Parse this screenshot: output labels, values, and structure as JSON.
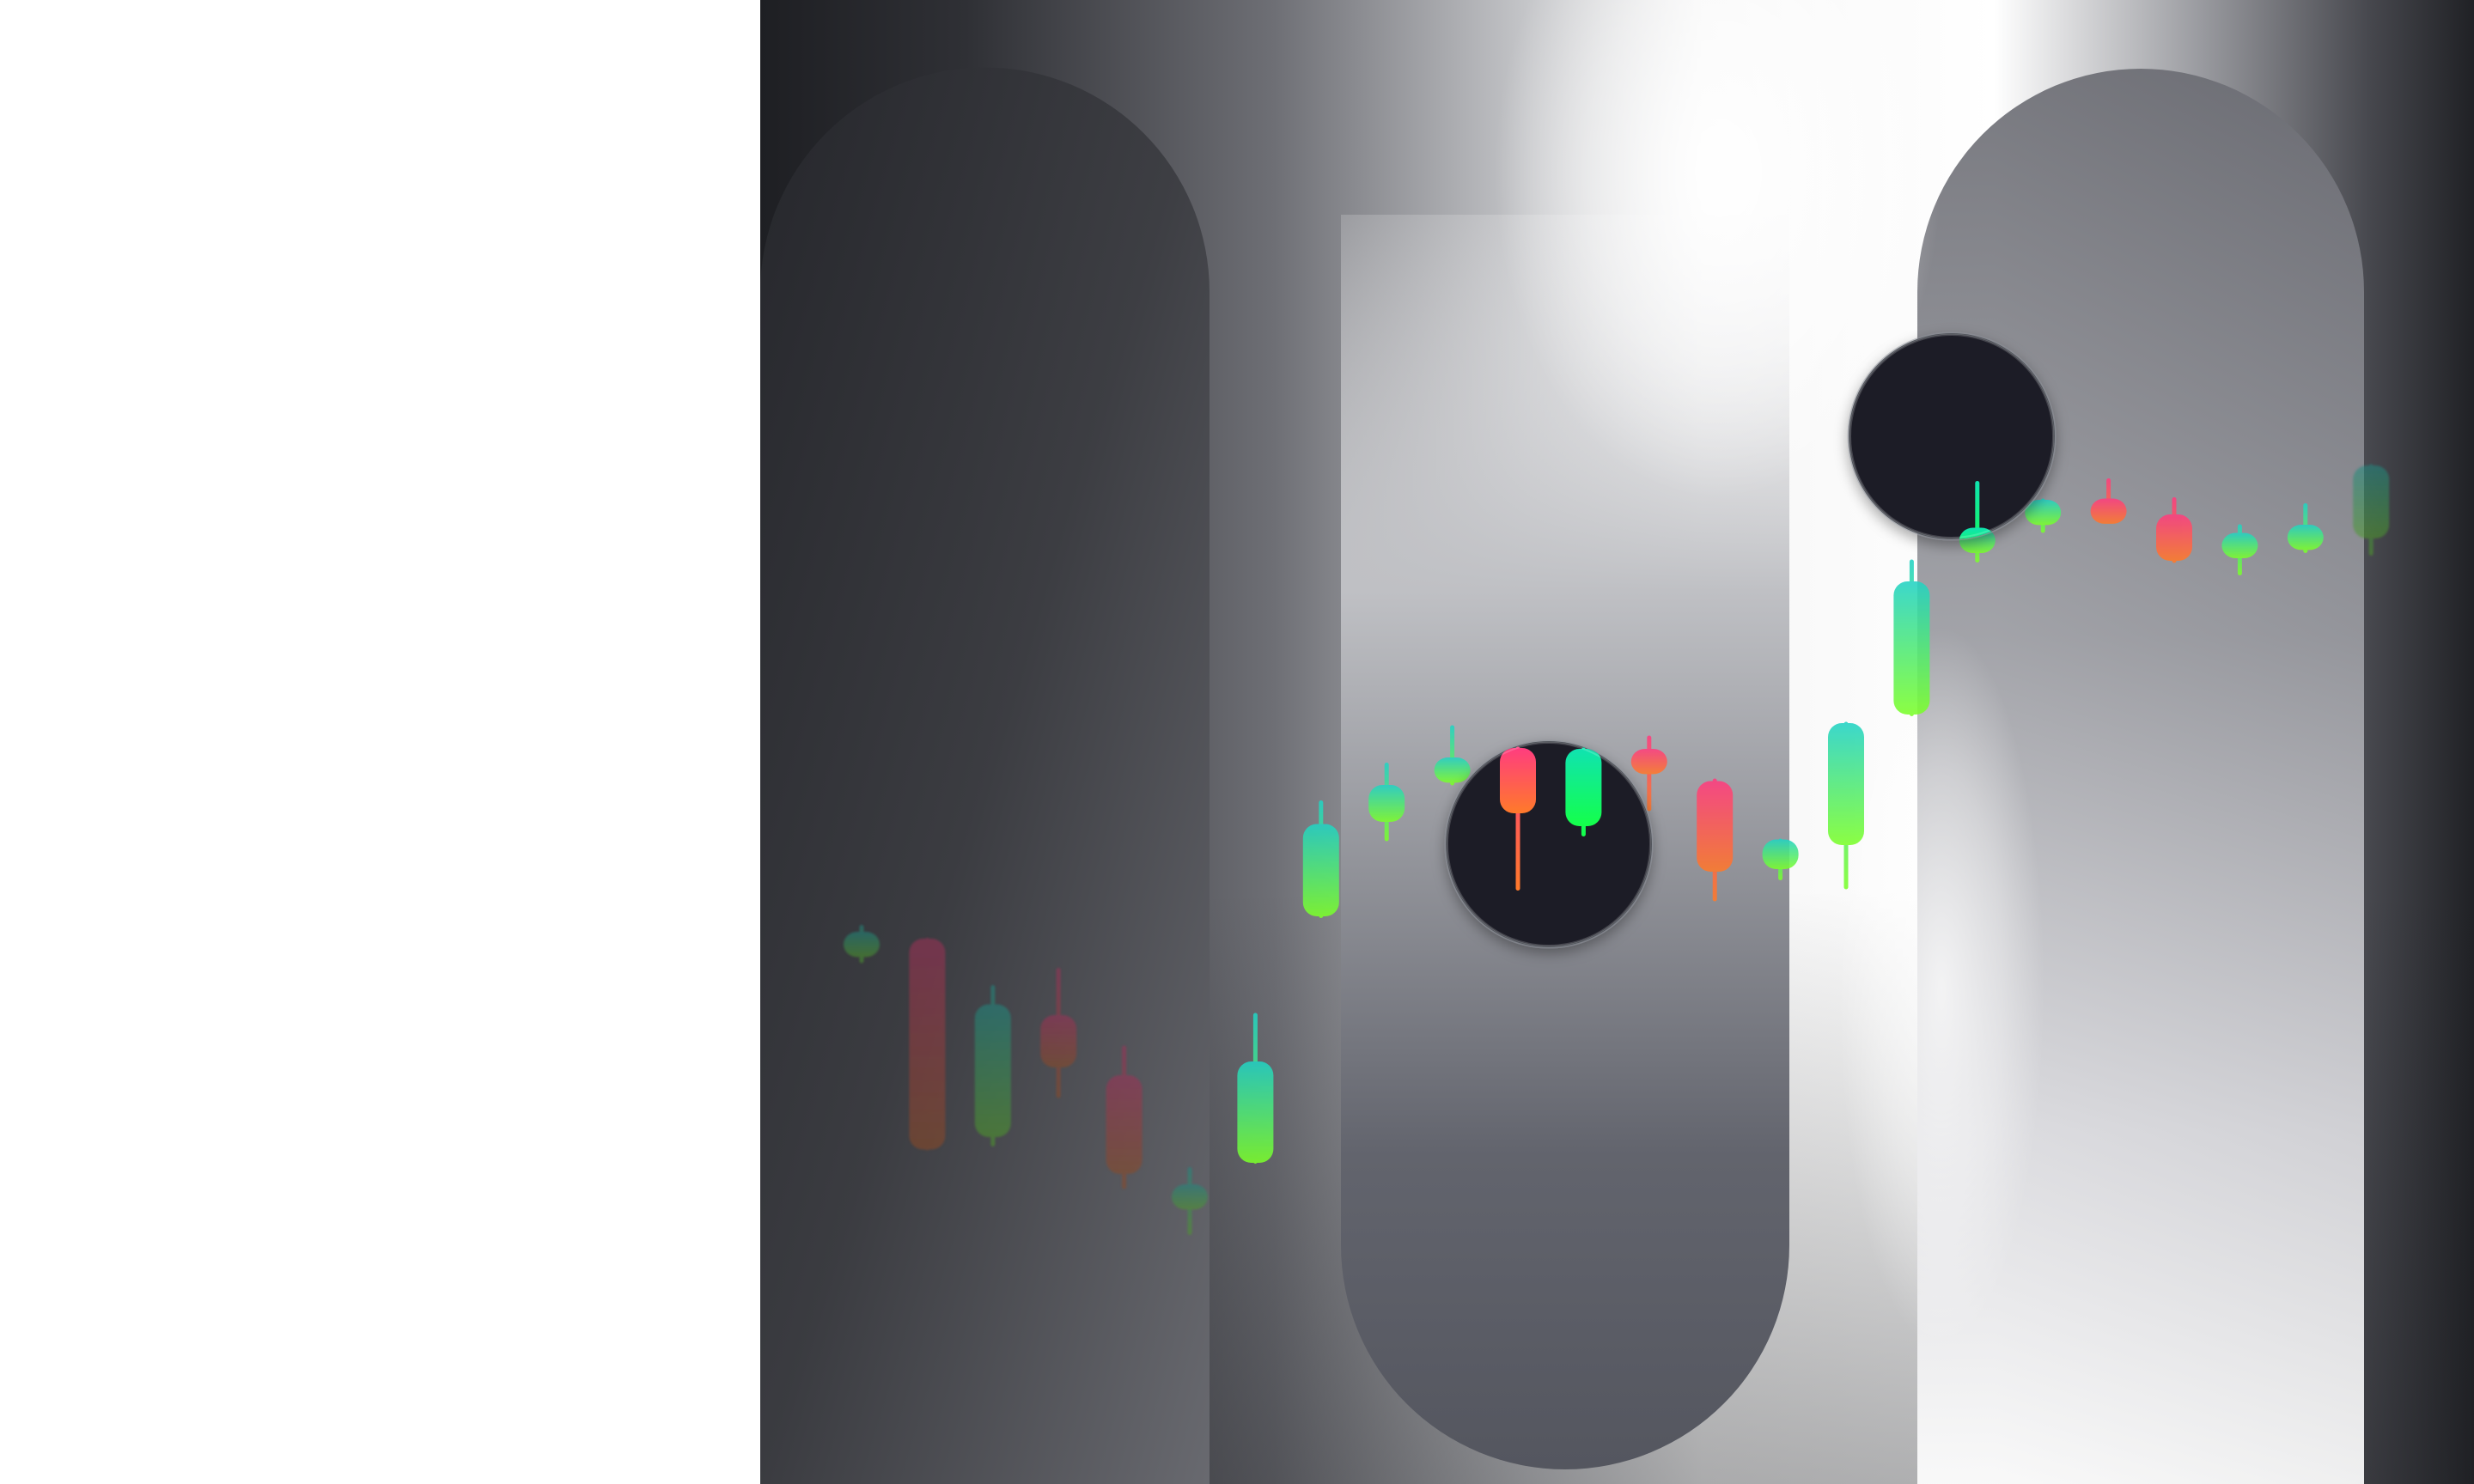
{
  "scene": {
    "background": "#ffffff",
    "panel_dark": "#1e1f23",
    "pillar_mid": "#5b5d66",
    "glow": "#ffffff",
    "lens_fill": "#1d1f25",
    "rising_top": "#22d3c5",
    "rising_bottom": "#7cff2a",
    "falling_top": "#ff3d7f",
    "falling_bottom": "#ff7a2a",
    "lens_green": "#14ff4a"
  },
  "candles": [
    {
      "dir": "up",
      "open": 50.2,
      "close": 54.4,
      "high": 56.0,
      "low": 47.1,
      "dim": true
    },
    {
      "dir": "down",
      "open": 52.8,
      "close": 3.7,
      "high": 53.0,
      "low": 3.5,
      "dim": true
    },
    {
      "dir": "up",
      "open": 6.6,
      "close": 37.5,
      "high": 42.0,
      "low": 4.4,
      "dim": true
    },
    {
      "dir": "down",
      "open": 35.0,
      "close": 22.8,
      "high": 46.0,
      "low": 15.7,
      "dim": true
    },
    {
      "dir": "down",
      "open": 21.0,
      "close": -2.0,
      "high": 27.9,
      "low": -5.5,
      "dim": true
    },
    {
      "dir": "up",
      "open": -7.9,
      "close": -4.4,
      "high": -0.4,
      "low": -16.2,
      "dim": true
    },
    {
      "dir": "up",
      "open": 0.6,
      "close": 24.2,
      "high": 35.5,
      "low": 0.4,
      "dim": false
    },
    {
      "dir": "up",
      "open": 58.0,
      "close": 79.5,
      "high": 85.0,
      "low": 57.6,
      "dim": false
    },
    {
      "dir": "up",
      "open": 80.0,
      "close": 88.6,
      "high": 93.8,
      "low": 75.5,
      "dim": false
    },
    {
      "dir": "up",
      "open": 90.4,
      "close": 95.0,
      "high": 102.5,
      "low": 88.5,
      "dim": false
    },
    {
      "dir": "down",
      "open": 97.2,
      "close": 82.0,
      "high": 97.5,
      "low": 64.0,
      "dim": false
    },
    {
      "dir": "up",
      "open": 79.0,
      "close": 97.0,
      "high": 97.3,
      "low": 76.6,
      "dim": false
    },
    {
      "dir": "down",
      "open": 97.0,
      "close": 92.5,
      "high": 100.1,
      "low": 82.5,
      "dim": false
    },
    {
      "dir": "down",
      "open": 89.5,
      "close": 68.4,
      "high": 90.1,
      "low": 61.5,
      "dim": false
    },
    {
      "dir": "up",
      "open": 69.0,
      "close": 75.9,
      "high": 76.1,
      "low": 66.4,
      "dim": false
    },
    {
      "dir": "up",
      "open": 74.6,
      "close": 103.0,
      "high": 103.3,
      "low": 64.3,
      "dim": false
    },
    {
      "dir": "up",
      "open": 105.0,
      "close": 136.0,
      "high": 141.1,
      "low": 104.6,
      "dim": false
    },
    {
      "dir": "up",
      "open": 142.6,
      "close": 148.5,
      "high": 159.4,
      "low": 140.4,
      "dim": false
    },
    {
      "dir": "up",
      "open": 151.0,
      "close": 155.0,
      "high": 155.3,
      "low": 147.3,
      "dim": false
    },
    {
      "dir": "down",
      "open": 155.3,
      "close": 154.2,
      "high": 160.0,
      "low": 150.6,
      "dim": false
    },
    {
      "dir": "down",
      "open": 151.6,
      "close": 140.8,
      "high": 155.6,
      "low": 140.3,
      "dim": false
    },
    {
      "dir": "up",
      "open": 141.4,
      "close": 147.3,
      "high": 149.3,
      "low": 137.4,
      "dim": false
    },
    {
      "dir": "up",
      "open": 144.4,
      "close": 149.2,
      "high": 154.2,
      "low": 142.6,
      "dim": false
    },
    {
      "dir": "up",
      "open": 146.0,
      "close": 163.0,
      "high": 163.3,
      "low": 142.0,
      "dim": true
    }
  ],
  "lenses": [
    {
      "name": "lens-lower",
      "candles": [
        10,
        11
      ]
    },
    {
      "name": "lens-upper",
      "candles": [
        16,
        17
      ]
    }
  ]
}
